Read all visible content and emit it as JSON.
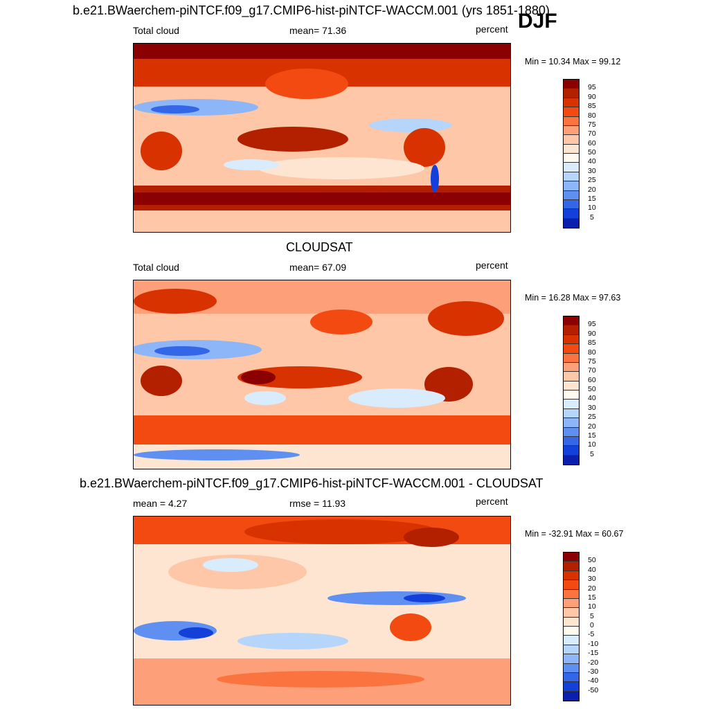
{
  "header": {
    "title": "b.e21.BWaerchem-piNTCF.f09_g17.CMIP6-hist-piNTCF-WACCM.001 (yrs 1851-1880)",
    "season": "DJF"
  },
  "panels": [
    {
      "title": "",
      "left": "Total cloud",
      "center": "mean=  71.36",
      "units": "percent",
      "minmax": "Min =  10.34 Max =  99.12",
      "ticks": [
        "95",
        "90",
        "85",
        "80",
        "75",
        "70",
        "60",
        "50",
        "40",
        "30",
        "25",
        "20",
        "15",
        "10",
        "5"
      ]
    },
    {
      "title": "CLOUDSAT",
      "left": "Total cloud",
      "center": "mean=  67.09",
      "units": "percent",
      "minmax": "Min =  16.28 Max =  97.63",
      "ticks": [
        "95",
        "90",
        "85",
        "80",
        "75",
        "70",
        "60",
        "50",
        "40",
        "30",
        "25",
        "20",
        "15",
        "10",
        "5"
      ]
    },
    {
      "title": "b.e21.BWaerchem-piNTCF.f09_g17.CMIP6-hist-piNTCF-WACCM.001 - CLOUDSAT",
      "left": "mean =   4.27",
      "center": "rmse =  11.93",
      "units": "percent",
      "minmax": "Min = -32.91 Max =  60.67",
      "ticks": [
        "50",
        "40",
        "30",
        "20",
        "15",
        "10",
        "5",
        "0",
        "-5",
        "-10",
        "-15",
        "-20",
        "-30",
        "-40",
        "-50"
      ]
    }
  ],
  "chart_data": {
    "type": "heatmap",
    "variable": "Total cloud",
    "units": "percent",
    "season": "DJF",
    "colormap": [
      "#8b0000",
      "#b22000",
      "#d83200",
      "#f24a10",
      "#fb7440",
      "#fda07a",
      "#fdc7a8",
      "#fde5d2",
      "#fefaf0",
      "#d9ecfd",
      "#b6d5fb",
      "#8cb6f7",
      "#5f8ff0",
      "#3466e8",
      "#1240d8",
      "#0a1fae",
      "#050a80"
    ],
    "maps": [
      {
        "name": "b.e21.BWaerchem-piNTCF.f09_g17.CMIP6-hist-piNTCF-WACCM.001 (yrs 1851-1880)",
        "mean": 71.36,
        "min": 10.34,
        "max": 99.12,
        "levels": [
          95,
          90,
          85,
          80,
          75,
          70,
          60,
          50,
          40,
          30,
          25,
          20,
          15,
          10,
          5
        ]
      },
      {
        "name": "CLOUDSAT",
        "mean": 67.09,
        "min": 16.28,
        "max": 97.63,
        "levels": [
          95,
          90,
          85,
          80,
          75,
          70,
          60,
          50,
          40,
          30,
          25,
          20,
          15,
          10,
          5
        ]
      },
      {
        "name": "b.e21.BWaerchem-piNTCF.f09_g17.CMIP6-hist-piNTCF-WACCM.001 - CLOUDSAT",
        "mean": 4.27,
        "rmse": 11.93,
        "min": -32.91,
        "max": 60.67,
        "levels": [
          50,
          40,
          30,
          20,
          15,
          10,
          5,
          0,
          -5,
          -10,
          -15,
          -20,
          -30,
          -40,
          -50
        ]
      }
    ]
  }
}
